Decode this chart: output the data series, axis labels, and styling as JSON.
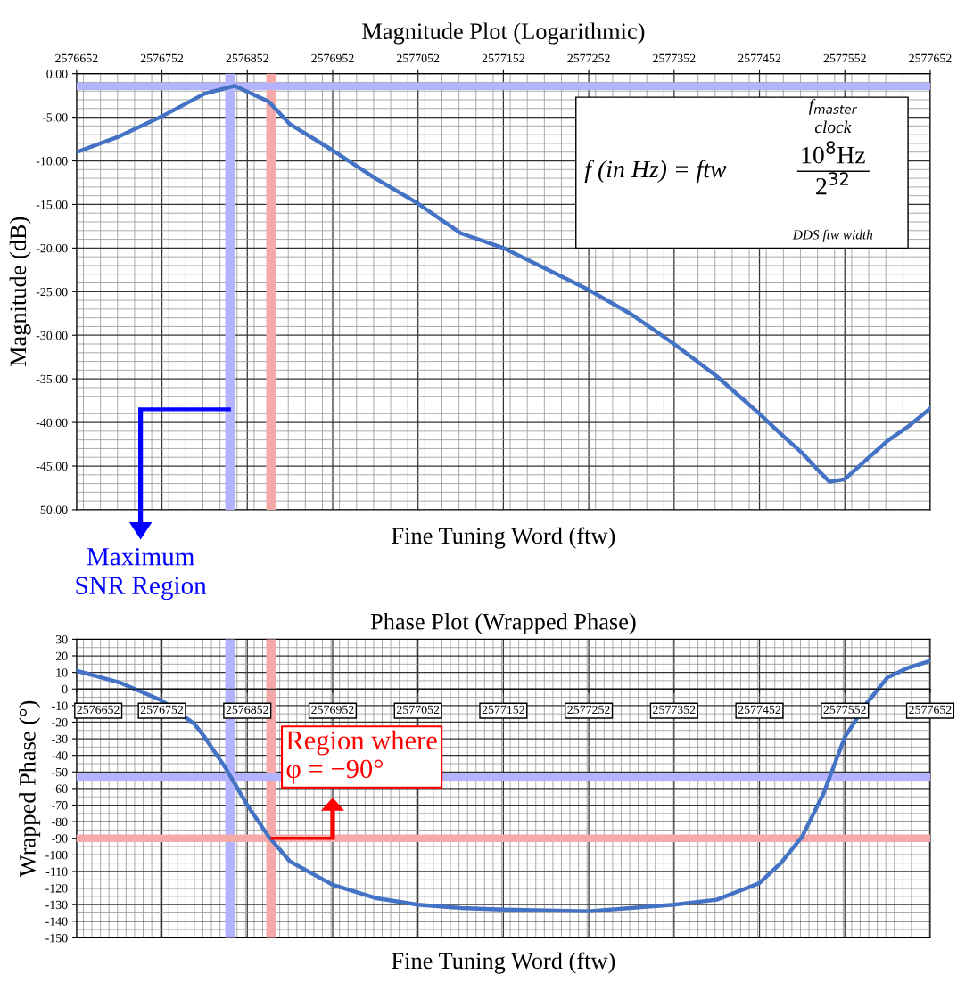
{
  "chart_data": [
    {
      "type": "line",
      "title": "Magnitude Plot (Logarithmic)",
      "xlabel": "Fine Tuning Word (ftw)",
      "ylabel": "Magnitude (dB)",
      "series": [
        {
          "color": "#4472c4",
          "x": [
            2576652,
            2576702,
            2576752,
            2576802,
            2576837,
            2576877,
            2576902,
            2576952,
            2577002,
            2577052,
            2577102,
            2577152,
            2577202,
            2577252,
            2577302,
            2577352,
            2577402,
            2577452,
            2577477,
            2577502,
            2577517,
            2577534,
            2577552,
            2577577,
            2577602,
            2577627,
            2577652
          ],
          "values": [
            -9.0,
            -7.2,
            -4.9,
            -2.3,
            -1.4,
            -3.2,
            -5.8,
            -8.8,
            -12.0,
            -14.9,
            -18.3,
            -20.0,
            -22.4,
            -24.8,
            -27.6,
            -31.0,
            -34.7,
            -39.0,
            -41.3,
            -43.5,
            -45.1,
            -46.8,
            -46.5,
            -44.3,
            -42.1,
            -40.4,
            -38.4
          ]
        }
      ],
      "xlim": [
        2576652,
        2577652
      ],
      "xticks": [
        2576652,
        2576752,
        2576852,
        2576952,
        2577052,
        2577152,
        2577252,
        2577352,
        2577452,
        2577552,
        2577652
      ],
      "ylim": [
        -50,
        0
      ],
      "yticks": [
        {
          "value": 0,
          "label": "0.00"
        },
        {
          "value": -5,
          "label": "-5.00"
        },
        {
          "value": -10,
          "label": "-10.00"
        },
        {
          "value": -15,
          "label": "-15.00"
        },
        {
          "value": -20,
          "label": "-20.00"
        },
        {
          "value": -25,
          "label": "-25.00"
        },
        {
          "value": -30,
          "label": "-30.00"
        },
        {
          "value": -35,
          "label": "-35.00"
        },
        {
          "value": -40,
          "label": "-40.00"
        },
        {
          "value": -45,
          "label": "-45.00"
        },
        {
          "value": -50,
          "label": "-50.00"
        }
      ],
      "grid": true,
      "ref_lines": [
        {
          "axis": "x",
          "value": 2576832,
          "color": "#b3b3ff"
        },
        {
          "axis": "x",
          "value": 2576880,
          "color": "#f5aaaa"
        },
        {
          "axis": "y",
          "value": -1.45,
          "color": "#b3b3ff"
        }
      ],
      "annotations": [
        "Maximum\nSNR Region",
        "f$_{master}$",
        "clock",
        "10$^{8}$Hz",
        "f (in Hz) = ftw",
        "2$^{32}$",
        "DDS ftw width"
      ]
    },
    {
      "type": "line",
      "title": "Phase Plot (Wrapped Phase)",
      "xlabel": "Fine Tuning Word (ftw)",
      "ylabel": "Wrapped Phase (°)",
      "series": [
        {
          "color": "#4472c4",
          "x": [
            2576652,
            2576702,
            2576752,
            2576790,
            2576802,
            2576827,
            2576852,
            2576877,
            2576902,
            2576952,
            2577002,
            2577052,
            2577102,
            2577152,
            2577252,
            2577352,
            2577402,
            2577452,
            2577477,
            2577502,
            2577527,
            2577552,
            2577577,
            2577602,
            2577627,
            2577652
          ],
          "values": [
            11,
            4,
            -7,
            -21,
            -29,
            -48,
            -70,
            -89,
            -104,
            -118,
            -126,
            -130,
            -132,
            -133,
            -134,
            -130,
            -127,
            -117,
            -105,
            -89,
            -63,
            -29,
            -9,
            7,
            13,
            17
          ]
        }
      ],
      "xlim": [
        2576652,
        2577652
      ],
      "xticks": [
        2576652,
        2576752,
        2576852,
        2576952,
        2577052,
        2577152,
        2577252,
        2577352,
        2577452,
        2577552,
        2577652
      ],
      "ylim": [
        -150,
        30
      ],
      "yticks": [
        30,
        20,
        10,
        0,
        -10,
        -20,
        -30,
        -40,
        -50,
        -60,
        -70,
        -80,
        -90,
        -100,
        -110,
        -120,
        -130,
        -140,
        -150
      ],
      "grid": true,
      "ref_lines": [
        {
          "axis": "x",
          "value": 2576832,
          "color": "#b3b3ff"
        },
        {
          "axis": "x",
          "value": 2576880,
          "color": "#f5aaaa"
        },
        {
          "axis": "y",
          "value": -53,
          "color": "#b3b3ff"
        },
        {
          "axis": "y",
          "value": -90,
          "color": "#f5aaaa"
        }
      ],
      "annotations": [
        {
          "text": "Region where\nφ = −90°",
          "x": 2576880,
          "y": -90
        }
      ]
    }
  ]
}
